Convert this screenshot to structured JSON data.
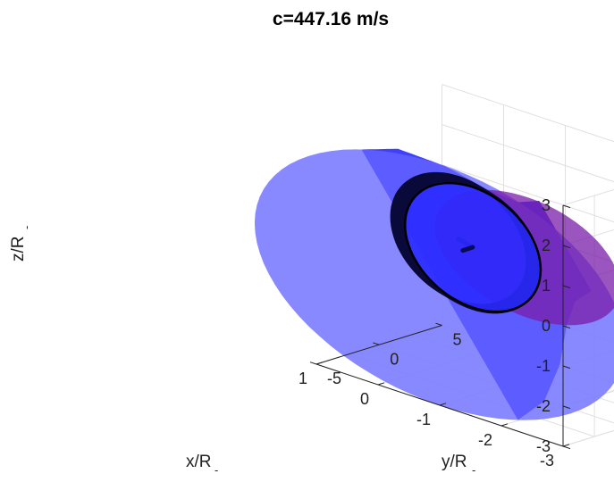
{
  "chart_data": {
    "type": "surface3d",
    "title": "c=447.16 m/s",
    "xlabel": "x/R",
    "xlabel_sub": "-",
    "ylabel": "y/R",
    "ylabel_sub": "-",
    "zlabel": "z/R",
    "zlabel_sub": "-",
    "xlim": [
      -3,
      1
    ],
    "ylim": [
      -5,
      5
    ],
    "zlim": [
      -3,
      3
    ],
    "x_ticks": [
      "-3",
      "-2",
      "-1",
      "0",
      "1"
    ],
    "y_ticks": [
      "-5",
      "0",
      "5"
    ],
    "z_ticks": [
      "3",
      "2",
      "1",
      "0",
      "-1",
      "-2",
      "-3"
    ],
    "grid": true,
    "axis_line": {
      "from": {
        "x": -1,
        "y": -3.5,
        "z": 1.0
      },
      "to": {
        "x": 0.4,
        "y": 4.5,
        "z": -0.7
      }
    },
    "rings": [
      {
        "y": -3.2,
        "radius": 1.1
      },
      {
        "y": -2.4,
        "radius": 1.1
      },
      {
        "y": -1.6,
        "radius": 1.1
      },
      {
        "y": -0.8,
        "radius": 1.1
      },
      {
        "y": 0.0,
        "radius": 1.1
      },
      {
        "y": 0.8,
        "radius": 1.1
      },
      {
        "y": 1.6,
        "radius": 1.1
      },
      {
        "y": 2.4,
        "radius": 1.1
      },
      {
        "y": 3.2,
        "radius": 1.1
      },
      {
        "y": 4.0,
        "radius": 1.1
      }
    ],
    "surface_profile": [
      {
        "y": -5.0,
        "radius": 3.0
      },
      {
        "y": -2.5,
        "radius": 2.8
      },
      {
        "y": 0.0,
        "radius": 2.2
      },
      {
        "y": 2.0,
        "radius": 1.5
      },
      {
        "y": 3.5,
        "radius": 1.1
      },
      {
        "y": 5.0,
        "radius": 1.0
      }
    ],
    "colors": {
      "surface": "#2a2aff",
      "surface_end_cap": "#7f7fff",
      "highlight_disk": "#7a1ca8",
      "rings": "#0a0a3a",
      "axis_line": "#0a0a5a",
      "grid": "#e0e0e0",
      "axes": "#222222"
    }
  }
}
